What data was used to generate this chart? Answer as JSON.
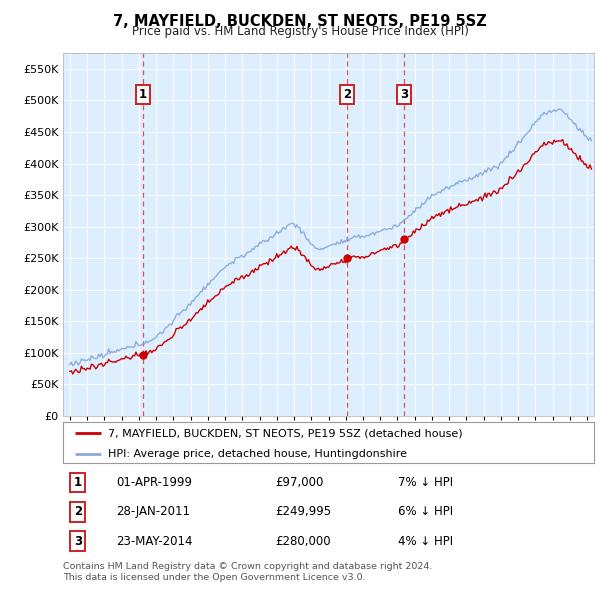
{
  "title": "7, MAYFIELD, BUCKDEN, ST NEOTS, PE19 5SZ",
  "subtitle": "Price paid vs. HM Land Registry's House Price Index (HPI)",
  "bg_color": "#ddeeff",
  "sale_color": "#cc0000",
  "hpi_color": "#88aadd",
  "sale_label": "7, MAYFIELD, BUCKDEN, ST NEOTS, PE19 5SZ (detached house)",
  "hpi_label": "HPI: Average price, detached house, Huntingdonshire",
  "transactions": [
    {
      "num": 1,
      "date": "01-APR-1999",
      "price": 97000,
      "pct": "7%",
      "dir": "↓"
    },
    {
      "num": 2,
      "date": "28-JAN-2011",
      "price": 249995,
      "pct": "6%",
      "dir": "↓"
    },
    {
      "num": 3,
      "date": "23-MAY-2014",
      "price": 280000,
      "pct": "4%",
      "dir": "↓"
    }
  ],
  "transaction_years": [
    1999.25,
    2011.08,
    2014.39
  ],
  "sale_prices": [
    97000,
    249995,
    280000
  ],
  "footer": "Contains HM Land Registry data © Crown copyright and database right 2024.\nThis data is licensed under the Open Government Licence v3.0.",
  "ylim": [
    0,
    575000
  ],
  "xlim_start": 1994.6,
  "xlim_end": 2025.4,
  "yticks": [
    0,
    50000,
    100000,
    150000,
    200000,
    250000,
    300000,
    350000,
    400000,
    450000,
    500000,
    550000
  ],
  "ytick_labels": [
    "£0",
    "£50K",
    "£100K",
    "£150K",
    "£200K",
    "£250K",
    "£300K",
    "£350K",
    "£400K",
    "£450K",
    "£500K",
    "£550K"
  ]
}
